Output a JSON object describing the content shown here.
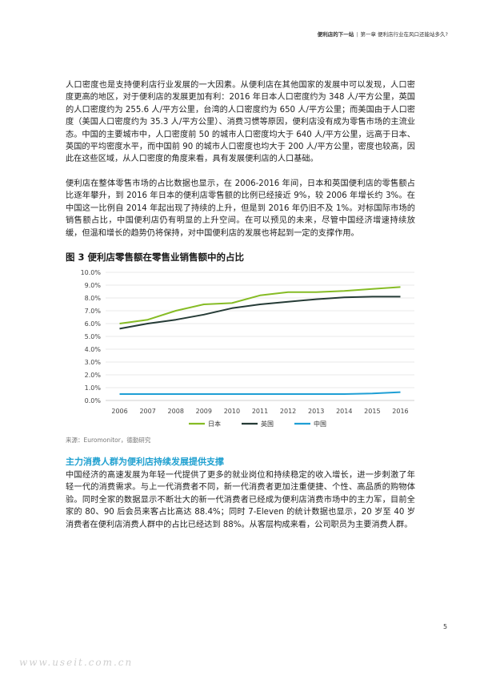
{
  "header": {
    "book_title": "便利店的下一站",
    "separator": "|",
    "chapter": "第一章 便利店行业在风口还能站多久?"
  },
  "paragraphs": [
    "人口密度也是支持便利店行业发展的一大因素。从便利店在其他国家的发展中可以发现，人口密度更高的地区，对于便利店的发展更加有利：2016 年日本人口密度约为 348 人/平方公里，英国的人口密度约为 255.6 人/平方公里，台湾的人口密度约为 650 人/平方公里；而美国由于人口密度（美国人口密度约为 35.3 人/平方公里）、消费习惯等原因，便利店没有成为零售市场的主流业态。中国的主要城市中，人口密度前 50 的城市人口密度均大于 640 人/平方公里，远高于日本、英国的平均密度水平，而中国前 90 的城市人口密度也均大于 200 人/平方公里，密度也较高，因此在这些区域，从人口密度的角度来看，具有发展便利店的人口基础。",
    "便利店在整体零售市场的占比数据也显示，在 2006-2016 年间，日本和英国便利店的零售额占比逐年攀升，到 2016 年日本的便利店零售额的比例已经接近 9%，较 2006 年增长约 3%。在中国这一比例自 2014 年起出现了持续的上升，但是到 2016 年仍旧不及 1%。对标国际市场的销售额占比，中国便利店仍有明显的上升空间。在可以预见的未来，尽管中国经济增速持续放缓，但温和增长的趋势仍将保持，对中国便利店的发展也将起到一定的支撑作用。",
    "中国经济的高速发展为年轻一代提供了更多的就业岗位和持续稳定的收入增长，进一步刺激了年轻一代的消费需求。与上一代消费者不同，新一代消费者更加注重便捷、个性、高品质的购物体验。同时全家的数据显示不断壮大的新一代消费者已经成为便利店消费市场中的主力军，目前全家的 80、90 后会员来客占比高达 88.4%；同时 7-Eleven 的统计数据也显示，20 岁至 40 岁消费者在便利店消费人群中的占比已经达到 88%。从客层构成来看，公司职员为主要消费人群。"
  ],
  "figure": {
    "label": "图 3",
    "title": "便利店零售额在零售业销售额中的占比",
    "source": "来源：Euromonitor，德勤研究"
  },
  "section_heading": "主力消费人群为便利店持续发展提供支撑",
  "page_number": "5",
  "watermark": "www.useit.com.cn",
  "chart_data": {
    "type": "line",
    "title": "",
    "xlabel": "",
    "ylabel": "",
    "x": [
      2006,
      2007,
      2008,
      2009,
      2010,
      2011,
      2012,
      2013,
      2014,
      2015,
      2016
    ],
    "ylim": [
      0,
      10
    ],
    "yticks": [
      "0.0%",
      "1.0%",
      "2.0%",
      "3.0%",
      "4.0%",
      "5.0%",
      "6.0%",
      "7.0%",
      "8.0%",
      "9.0%",
      "10.0%"
    ],
    "grid": true,
    "legend_position": "bottom",
    "series": [
      {
        "name": "日本",
        "color": "#86bc25",
        "values": [
          6.0,
          6.3,
          7.0,
          7.5,
          7.6,
          8.2,
          8.45,
          8.45,
          8.55,
          8.7,
          8.85
        ]
      },
      {
        "name": "英国",
        "color": "#253b36",
        "values": [
          5.6,
          6.0,
          6.3,
          6.7,
          7.2,
          7.5,
          7.7,
          7.9,
          8.05,
          8.1,
          8.1
        ]
      },
      {
        "name": "中国",
        "color": "#1f9fd5",
        "values": [
          0.5,
          0.5,
          0.5,
          0.5,
          0.5,
          0.5,
          0.5,
          0.5,
          0.5,
          0.55,
          0.65
        ]
      }
    ]
  }
}
